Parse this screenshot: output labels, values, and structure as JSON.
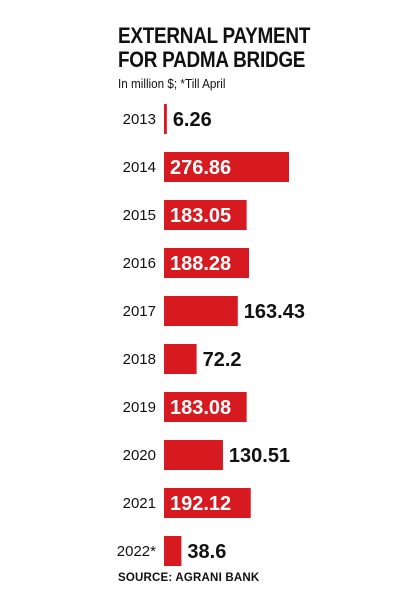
{
  "header": {
    "title_line1": "EXTERNAL PAYMENT",
    "title_line2": "FOR PADMA BRIDGE",
    "subtitle": "In million $; *Till April"
  },
  "footer": {
    "source": "SOURCE: AGRANI BANK"
  },
  "colors": {
    "bar": "#d71920",
    "label_inside": "#ffffff",
    "label_outside": "#111111"
  },
  "chart_data": {
    "type": "bar",
    "orientation": "horizontal",
    "categories": [
      "2013",
      "2014",
      "2015",
      "2016",
      "2017",
      "2018",
      "2019",
      "2020",
      "2021",
      "2022*"
    ],
    "values": [
      6.26,
      276.86,
      183.05,
      188.28,
      163.43,
      72.2,
      183.08,
      130.51,
      192.12,
      38.6
    ],
    "value_labels": [
      "6.26",
      "276.86",
      "183.05",
      "188.28",
      "163.43",
      "72.2",
      "183.08",
      "130.51",
      "192.12",
      "38.6"
    ],
    "title": "EXTERNAL PAYMENT FOR PADMA BRIDGE",
    "subtitle": "In million $; *Till April",
    "xlim": [
      0,
      276.86
    ],
    "grid": false,
    "legend": "none"
  }
}
